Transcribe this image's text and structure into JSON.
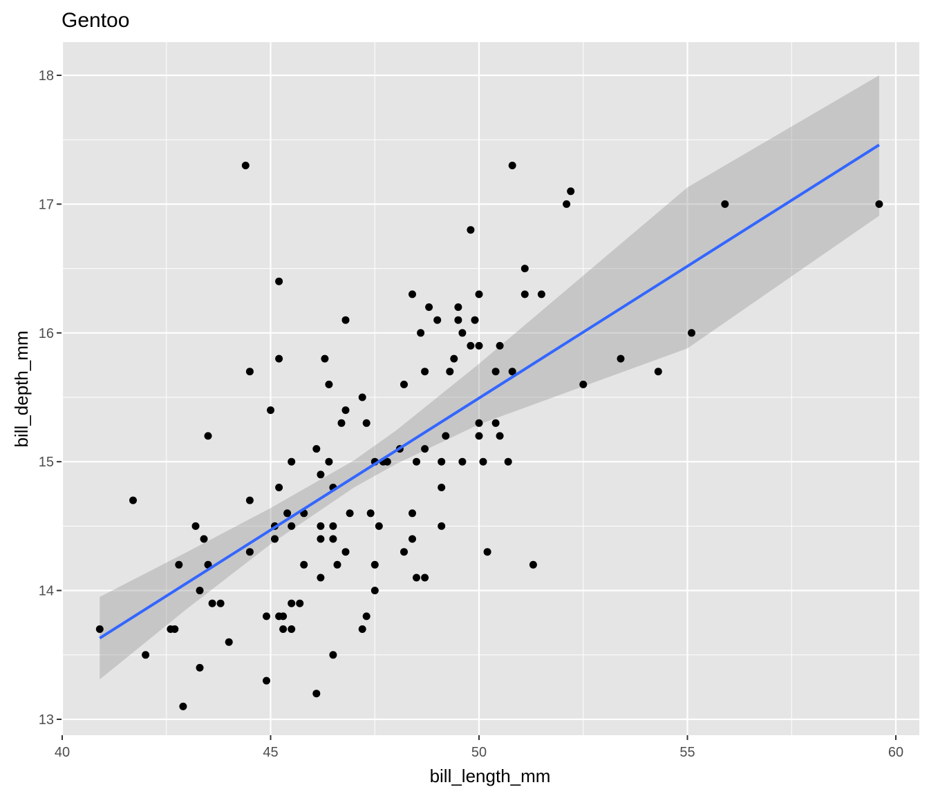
{
  "chart_data": {
    "type": "scatter",
    "title": "Gentoo",
    "xlabel": "bill_length_mm",
    "ylabel": "bill_depth_mm",
    "xlim": [
      40,
      60
    ],
    "ylim": [
      13,
      18
    ],
    "xticks": [
      40,
      45,
      50,
      55,
      60
    ],
    "yticks": [
      13,
      14,
      15,
      16,
      17,
      18
    ],
    "grid": true,
    "background": "#e5e5e5",
    "grid_color": "#ffffff",
    "point_color": "#000000",
    "line_color": "#3366ff",
    "band_color": "#999999",
    "points": [
      [
        40.9,
        13.7
      ],
      [
        41.7,
        14.7
      ],
      [
        42.0,
        13.5
      ],
      [
        42.6,
        13.7
      ],
      [
        42.7,
        13.7
      ],
      [
        42.8,
        14.2
      ],
      [
        42.9,
        13.1
      ],
      [
        43.2,
        14.5
      ],
      [
        43.3,
        14.0
      ],
      [
        43.3,
        13.4
      ],
      [
        43.4,
        14.4
      ],
      [
        43.5,
        15.2
      ],
      [
        43.5,
        14.2
      ],
      [
        43.6,
        13.9
      ],
      [
        43.8,
        13.9
      ],
      [
        44.0,
        13.6
      ],
      [
        44.4,
        17.3
      ],
      [
        44.5,
        15.7
      ],
      [
        44.5,
        14.7
      ],
      [
        44.5,
        14.3
      ],
      [
        44.9,
        13.8
      ],
      [
        44.9,
        13.3
      ],
      [
        45.0,
        15.4
      ],
      [
        45.1,
        14.5
      ],
      [
        45.1,
        14.4
      ],
      [
        45.2,
        16.4
      ],
      [
        45.2,
        15.8
      ],
      [
        45.2,
        14.8
      ],
      [
        45.2,
        13.8
      ],
      [
        45.3,
        13.8
      ],
      [
        45.3,
        13.7
      ],
      [
        45.4,
        14.6
      ],
      [
        45.5,
        15.0
      ],
      [
        45.5,
        14.5
      ],
      [
        45.5,
        13.9
      ],
      [
        45.5,
        13.7
      ],
      [
        45.7,
        13.9
      ],
      [
        45.8,
        14.6
      ],
      [
        45.8,
        14.2
      ],
      [
        46.1,
        15.1
      ],
      [
        46.1,
        13.2
      ],
      [
        46.2,
        14.9
      ],
      [
        46.2,
        14.5
      ],
      [
        46.2,
        14.4
      ],
      [
        46.2,
        14.1
      ],
      [
        46.3,
        15.8
      ],
      [
        46.4,
        15.6
      ],
      [
        46.4,
        15.0
      ],
      [
        46.5,
        14.8
      ],
      [
        46.5,
        14.5
      ],
      [
        46.5,
        14.4
      ],
      [
        46.5,
        13.5
      ],
      [
        46.6,
        14.2
      ],
      [
        46.7,
        15.3
      ],
      [
        46.8,
        16.1
      ],
      [
        46.8,
        15.4
      ],
      [
        46.8,
        14.3
      ],
      [
        46.9,
        14.6
      ],
      [
        47.2,
        15.5
      ],
      [
        47.2,
        13.7
      ],
      [
        47.3,
        15.3
      ],
      [
        47.3,
        13.8
      ],
      [
        47.4,
        14.6
      ],
      [
        47.5,
        15.0
      ],
      [
        47.5,
        14.2
      ],
      [
        47.5,
        14.0
      ],
      [
        47.6,
        14.5
      ],
      [
        47.7,
        15.0
      ],
      [
        47.8,
        15.0
      ],
      [
        48.1,
        15.1
      ],
      [
        48.2,
        15.6
      ],
      [
        48.2,
        14.3
      ],
      [
        48.4,
        16.3
      ],
      [
        48.4,
        14.6
      ],
      [
        48.4,
        14.4
      ],
      [
        48.5,
        15.0
      ],
      [
        48.5,
        14.1
      ],
      [
        48.6,
        16.0
      ],
      [
        48.7,
        15.7
      ],
      [
        48.7,
        15.1
      ],
      [
        48.7,
        14.1
      ],
      [
        48.8,
        16.2
      ],
      [
        49.0,
        16.1
      ],
      [
        49.1,
        15.0
      ],
      [
        49.1,
        14.8
      ],
      [
        49.1,
        14.5
      ],
      [
        49.2,
        15.2
      ],
      [
        49.3,
        15.7
      ],
      [
        49.4,
        15.8
      ],
      [
        49.5,
        16.2
      ],
      [
        49.5,
        16.1
      ],
      [
        49.6,
        16.0
      ],
      [
        49.6,
        15.0
      ],
      [
        49.8,
        16.8
      ],
      [
        49.8,
        15.9
      ],
      [
        49.9,
        16.1
      ],
      [
        50.0,
        16.3
      ],
      [
        50.0,
        15.9
      ],
      [
        50.0,
        15.3
      ],
      [
        50.0,
        15.2
      ],
      [
        50.1,
        15.0
      ],
      [
        50.2,
        14.3
      ],
      [
        50.4,
        15.7
      ],
      [
        50.4,
        15.3
      ],
      [
        50.5,
        15.9
      ],
      [
        50.5,
        15.2
      ],
      [
        50.7,
        15.0
      ],
      [
        50.8,
        17.3
      ],
      [
        50.8,
        15.7
      ],
      [
        51.1,
        16.5
      ],
      [
        51.1,
        16.3
      ],
      [
        51.3,
        14.2
      ],
      [
        51.5,
        16.3
      ],
      [
        52.1,
        17.0
      ],
      [
        52.2,
        17.1
      ],
      [
        52.5,
        15.6
      ],
      [
        53.4,
        15.8
      ],
      [
        54.3,
        15.7
      ],
      [
        55.1,
        16.0
      ],
      [
        55.9,
        17.0
      ],
      [
        59.6,
        17.0
      ]
    ],
    "fit_line": {
      "x": [
        40.9,
        59.6
      ],
      "y": [
        13.63,
        17.46
      ]
    },
    "confidence_band": [
      {
        "x": 40.9,
        "lower": 13.31,
        "upper": 13.95
      },
      {
        "x": 43.0,
        "lower": 13.86,
        "upper": 14.3
      },
      {
        "x": 45.0,
        "lower": 14.36,
        "upper": 14.64
      },
      {
        "x": 47.0,
        "lower": 14.8,
        "upper": 15.01
      },
      {
        "x": 48.0,
        "lower": 14.98,
        "upper": 15.24
      },
      {
        "x": 50.0,
        "lower": 15.29,
        "upper": 15.76
      },
      {
        "x": 55.0,
        "lower": 15.88,
        "upper": 17.13
      },
      {
        "x": 59.6,
        "lower": 16.91,
        "upper": 18.0
      }
    ]
  }
}
